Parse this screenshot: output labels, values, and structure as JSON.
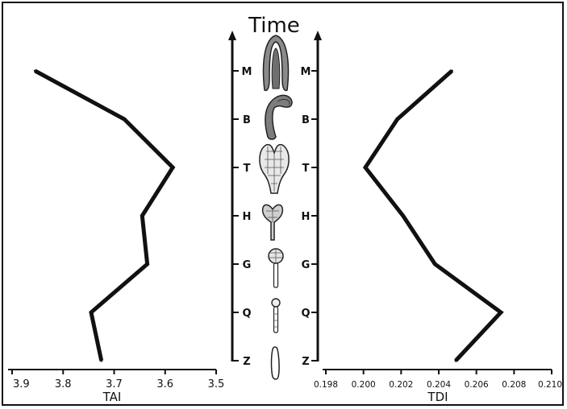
{
  "chart_data": [
    {
      "type": "line",
      "orientation": "horizontal-value",
      "xlabel": "TAI",
      "ylabel": "Time",
      "xlim": [
        3.9,
        3.5
      ],
      "xticks": [
        "3.9",
        "3.8",
        "3.7",
        "3.6",
        "3.5"
      ],
      "categories": [
        "Z",
        "Q",
        "G",
        "H",
        "T",
        "B",
        "M"
      ],
      "values": [
        3.725,
        3.745,
        3.635,
        3.645,
        3.585,
        3.68,
        3.855
      ]
    },
    {
      "type": "line",
      "orientation": "horizontal-value",
      "xlabel": "TDI",
      "ylabel": "Time",
      "xlim": [
        0.198,
        0.21
      ],
      "xticks": [
        "0.198",
        "0.200",
        "0.202",
        "0.204",
        "0.206",
        "0.208",
        "0.210"
      ],
      "categories": [
        "Z",
        "Q",
        "G",
        "H",
        "T",
        "B",
        "M"
      ],
      "values": [
        0.2049,
        0.2073,
        0.2038,
        0.2021,
        0.2001,
        0.2018,
        0.2047
      ]
    }
  ],
  "time_label": "Time",
  "stages": [
    "Z",
    "Q",
    "G",
    "H",
    "T",
    "B",
    "M"
  ],
  "stage_icons": [
    "zygote-icon",
    "quadrant-icon",
    "globular-icon",
    "heart-icon",
    "torpedo-icon",
    "bent-cotyledon-icon",
    "mature-embryo-icon"
  ],
  "line_color": "#111111"
}
